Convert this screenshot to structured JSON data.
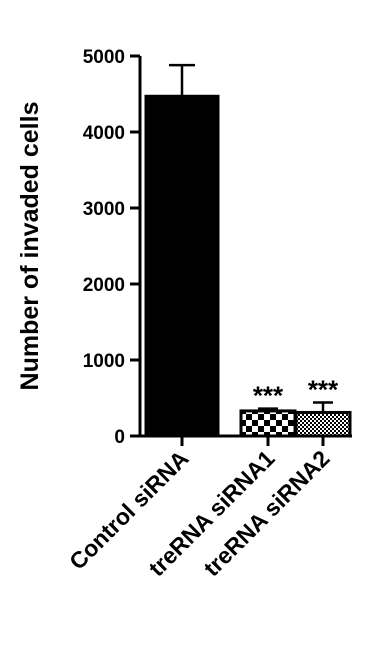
{
  "chart_data": {
    "type": "bar",
    "ylabel": "Number of invaded cells",
    "xlabel": "",
    "ylim": [
      0,
      5000
    ],
    "yticks": [
      0,
      1000,
      2000,
      3000,
      4000,
      5000
    ],
    "categories": [
      "Control siRNA",
      "treRNA siRNA1",
      "treRNA siRNA2"
    ],
    "values": [
      4470,
      330,
      310
    ],
    "errors": [
      410,
      30,
      130
    ],
    "significance": [
      "",
      "***",
      "***"
    ],
    "bar_patterns": [
      "solid-black",
      "checkerboard-large",
      "checkerboard-small"
    ],
    "colors": {
      "bar": "#000000",
      "axis": "#000000",
      "background": "#ffffff"
    }
  }
}
